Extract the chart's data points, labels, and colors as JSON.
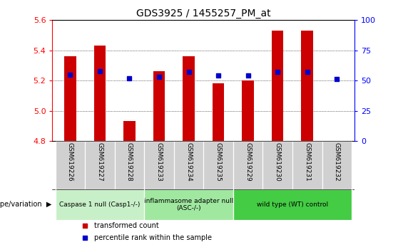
{
  "title": "GDS3925 / 1455257_PM_at",
  "samples": [
    "GSM619226",
    "GSM619227",
    "GSM619228",
    "GSM619233",
    "GSM619234",
    "GSM619235",
    "GSM619229",
    "GSM619230",
    "GSM619231",
    "GSM619232"
  ],
  "transformed_count": [
    5.36,
    5.43,
    4.93,
    5.26,
    5.36,
    5.18,
    5.2,
    5.53,
    5.53,
    4.8
  ],
  "percentile_rank": [
    55,
    58,
    52,
    53,
    57,
    54,
    54,
    57,
    57,
    51
  ],
  "ylim_left": [
    4.8,
    5.6
  ],
  "ylim_right": [
    0,
    100
  ],
  "yticks_left": [
    4.8,
    5.0,
    5.2,
    5.4,
    5.6
  ],
  "yticks_right": [
    0,
    25,
    50,
    75,
    100
  ],
  "bar_color": "#cc0000",
  "dot_color": "#0000cc",
  "groups": [
    {
      "label": "Caspase 1 null (Casp1-/-)",
      "start": 0,
      "end": 3,
      "color": "#c8f0c8"
    },
    {
      "label": "inflammasome adapter null\n(ASC-/-)",
      "start": 3,
      "end": 6,
      "color": "#a0e8a0"
    },
    {
      "label": "wild type (WT) control",
      "start": 6,
      "end": 10,
      "color": "#44cc44"
    }
  ],
  "legend_bar_label": "transformed count",
  "legend_dot_label": "percentile rank within the sample",
  "genotype_label": "genotype/variation",
  "bg_color": "#ffffff",
  "tick_area_color": "#d0d0d0",
  "bar_width": 0.4
}
